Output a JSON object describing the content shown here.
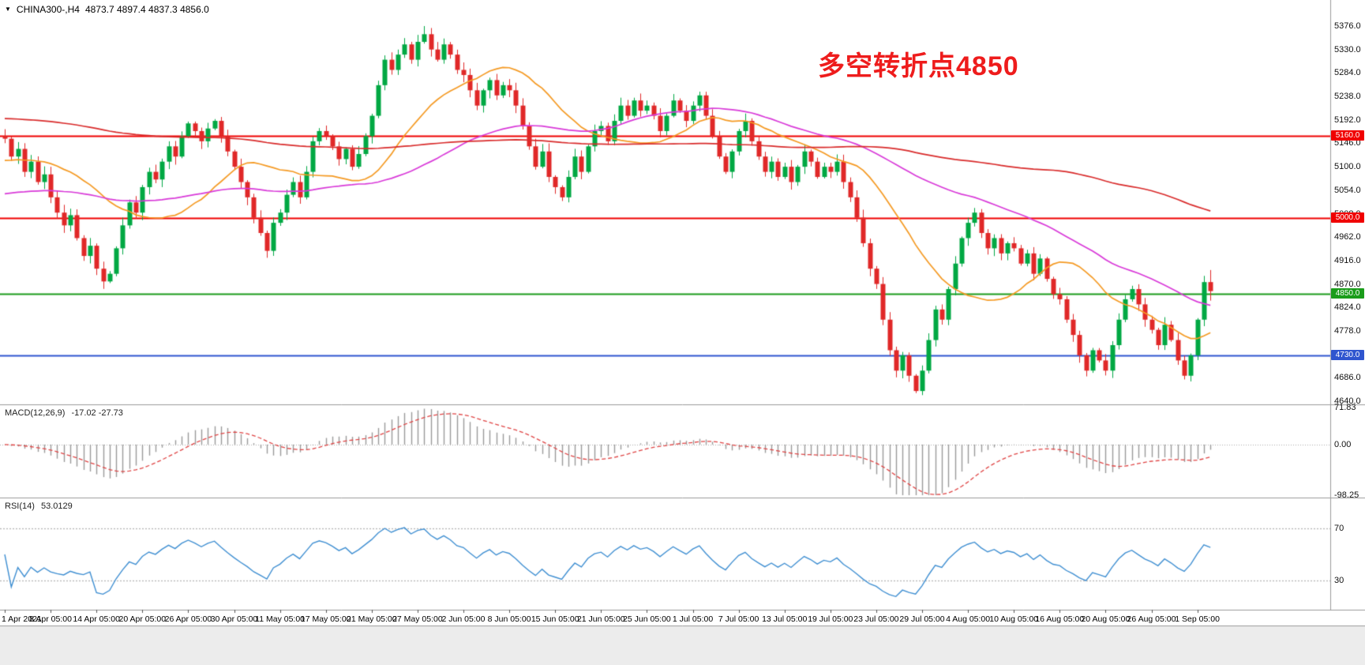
{
  "header": {
    "symbol": "CHINA300-,H4",
    "ohlc": "4873.7 4897.4 4837.3 4856.0",
    "collapse_icon": "▼"
  },
  "annotation": {
    "text": "多空转折点4850",
    "color": "#ee1c1c"
  },
  "chart_data": {
    "type": "candlestick",
    "symbol": "CHINA300-",
    "timeframe": "H4",
    "current_candle": {
      "open": 4873.7,
      "high": 4897.4,
      "low": 4837.3,
      "close": 4856.0
    },
    "price_axis": {
      "min": 4640.0,
      "max": 5376.0,
      "step": 46.0,
      "ticks": [
        "5376.0",
        "5330.0",
        "5284.0",
        "5238.0",
        "5192.0",
        "5146.0",
        "5100.0",
        "5054.0",
        "5008.0",
        "4962.0",
        "4916.0",
        "4870.0",
        "4824.0",
        "4778.0",
        "4732.0",
        "4686.0",
        "4640.0"
      ]
    },
    "time_axis": {
      "candles_per_tick": 7,
      "ticks": [
        "1 Apr 2021",
        "8 Apr 05:00",
        "14 Apr 05:00",
        "20 Apr 05:00",
        "26 Apr 05:00",
        "30 Apr 05:00",
        "11 May 05:00",
        "17 May 05:00",
        "21 May 05:00",
        "27 May 05:00",
        "2 Jun 05:00",
        "8 Jun 05:00",
        "15 Jun 05:00",
        "21 Jun 05:00",
        "25 Jun 05:00",
        "1 Jul 05:00",
        "7 Jul 05:00",
        "13 Jul 05:00",
        "19 Jul 05:00",
        "23 Jul 05:00",
        "29 Jul 05:00",
        "4 Aug 05:00",
        "10 Aug 05:00",
        "16 Aug 05:00",
        "20 Aug 05:00",
        "26 Aug 05:00",
        "1 Sep 05:00"
      ]
    },
    "first_open": 5160.0,
    "closes": [
      5155,
      5120,
      5135,
      5090,
      5110,
      5070,
      5085,
      5040,
      5010,
      4985,
      5005,
      4960,
      4925,
      4945,
      4900,
      4875,
      4890,
      4940,
      4985,
      5030,
      5010,
      5060,
      5090,
      5075,
      5110,
      5140,
      5120,
      5160,
      5185,
      5170,
      5150,
      5175,
      5190,
      5160,
      5130,
      5100,
      5070,
      5040,
      5000,
      4970,
      4935,
      4990,
      5010,
      5045,
      5070,
      5040,
      5090,
      5150,
      5170,
      5160,
      5140,
      5115,
      5135,
      5100,
      5125,
      5160,
      5200,
      5260,
      5310,
      5290,
      5320,
      5340,
      5310,
      5345,
      5360,
      5330,
      5310,
      5340,
      5320,
      5290,
      5280,
      5250,
      5220,
      5250,
      5270,
      5240,
      5260,
      5250,
      5220,
      5180,
      5140,
      5100,
      5130,
      5080,
      5060,
      5040,
      5080,
      5120,
      5090,
      5140,
      5170,
      5180,
      5150,
      5190,
      5220,
      5200,
      5230,
      5210,
      5220,
      5200,
      5170,
      5200,
      5230,
      5210,
      5190,
      5220,
      5240,
      5200,
      5160,
      5120,
      5090,
      5130,
      5170,
      5190,
      5150,
      5120,
      5090,
      5110,
      5080,
      5100,
      5070,
      5100,
      5130,
      5110,
      5080,
      5100,
      5090,
      5110,
      5070,
      5040,
      5000,
      4950,
      4900,
      4870,
      4800,
      4740,
      4700,
      4730,
      4690,
      4660,
      4700,
      4760,
      4820,
      4800,
      4860,
      4910,
      4960,
      4990,
      5010,
      4970,
      4940,
      4960,
      4930,
      4950,
      4940,
      4910,
      4930,
      4890,
      4920,
      4880,
      4850,
      4840,
      4800,
      4770,
      4730,
      4700,
      4740,
      4720,
      4700,
      4750,
      4800,
      4840,
      4860,
      4830,
      4800,
      4780,
      4750,
      4790,
      4760,
      4720,
      4690,
      4730,
      4800,
      4873.7,
      4856.0
    ],
    "wick_overrides": {
      "64": {
        "high": 5376.0
      },
      "138": {
        "low": 4678.0
      },
      "139": {
        "low": 4656.0
      }
    },
    "horizontal_lines": [
      {
        "price": 5160.0,
        "label": "5160.0",
        "color": "#f00000",
        "width": 2
      },
      {
        "price": 5000.0,
        "label": "5000.0",
        "color": "#f00000",
        "width": 2
      },
      {
        "price": 4850.0,
        "label": "4850.0",
        "color": "#1a9c1a",
        "width": 2
      },
      {
        "price": 4730.0,
        "label": "4730.0",
        "color": "#2f55cf",
        "width": 2
      }
    ],
    "moving_averages": [
      {
        "name": "ma-fast",
        "period": 20,
        "seed": 5110,
        "color": "#f59a23"
      },
      {
        "name": "ma-mid",
        "period": 55,
        "seed": 5045,
        "color": "#d93ad9"
      },
      {
        "name": "ma-slow",
        "period": 120,
        "seed": 5195,
        "color": "#d92b2b"
      }
    ],
    "indicators": [
      {
        "id": "macd",
        "label": "MACD(12,26,9)",
        "value_text": "-17.02 -27.73",
        "params": {
          "fast": 12,
          "slow": 26,
          "signal": 9
        },
        "axis_ticks": [
          "71.83",
          "0.00",
          "-98.25"
        ],
        "axis_values": [
          71.83,
          0,
          -98.25
        ],
        "histogram_color": "#9a9a9a",
        "signal_color": "#e04545"
      },
      {
        "id": "rsi",
        "label": "RSI(14)",
        "value_text": "53.0129",
        "params": {
          "period": 14
        },
        "levels": [
          70,
          30
        ],
        "line_color": "#3f8fd2",
        "level_color": "#b5b5b5",
        "scale": {
          "min": 10,
          "max": 90
        }
      }
    ],
    "colors": {
      "up": "#00a843",
      "down": "#e02828",
      "background": "#ffffff",
      "axis_text": "#111111",
      "separator": "#9a9a9a"
    }
  }
}
